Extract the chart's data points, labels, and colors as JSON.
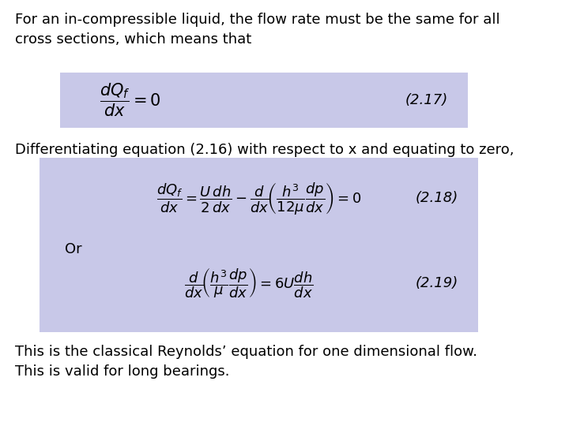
{
  "bg_color": "#ffffff",
  "box1_color": "#c8c8e8",
  "box2_color": "#c8c8e8",
  "text_color": "#000000",
  "para1": "For an in-compressible liquid, the flow rate must be the same for all\ncross sections, which means that",
  "eq1_label": "(2.17)",
  "eq1_lhs": "$\\dfrac{dQ_f}{dx} = 0$",
  "para2": "Differentiating equation (2.16) with respect to x and equating to zero,",
  "eq2": "$\\dfrac{dQ_f}{dx} = \\dfrac{U\\,dh}{2\\,dx} - \\dfrac{d}{dx}\\!\\left(\\dfrac{h^3}{12\\mu}\\dfrac{dp}{dx}\\right) = 0$",
  "eq2_label": "(2.18)",
  "eq3_prefix": "Or",
  "eq3": "$\\dfrac{d}{dx}\\!\\left(\\dfrac{h^3}{\\mu}\\dfrac{dp}{dx}\\right) = 6U\\dfrac{dh}{dx}$",
  "eq3_label": "(2.19)",
  "para3_line1": "This is the classical Reynolds’ equation for one dimensional flow.",
  "para3_line2": "This is valid for long bearings.",
  "font_size_para": 13,
  "font_size_eq": 13,
  "font_size_label": 13
}
